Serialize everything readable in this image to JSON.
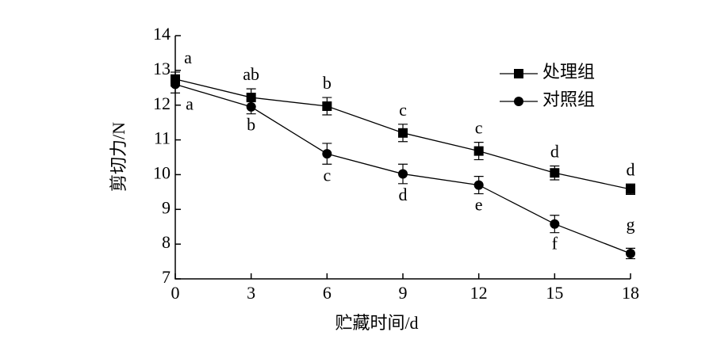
{
  "chart_data": {
    "type": "line",
    "x_label": "贮藏时间/d",
    "y_label": "剪切力/N",
    "x": [
      0,
      3,
      6,
      9,
      12,
      15,
      18
    ],
    "xlim": [
      0,
      18
    ],
    "xticks": [
      0,
      3,
      6,
      9,
      12,
      15,
      18
    ],
    "ylim": [
      7,
      14
    ],
    "yticks": [
      7,
      8,
      9,
      10,
      11,
      12,
      13,
      14
    ],
    "legend": "upper right",
    "series": [
      {
        "name": "处理组",
        "color": "#000000",
        "marker": "square",
        "values": [
          12.75,
          12.22,
          11.97,
          11.2,
          10.68,
          10.05,
          9.58
        ],
        "errors": [
          0.2,
          0.25,
          0.25,
          0.25,
          0.25,
          0.2,
          0.15
        ],
        "letters": [
          "a",
          "ab",
          "b",
          "c",
          "c",
          "d",
          "d"
        ]
      },
      {
        "name": "对照组",
        "color": "#000000",
        "marker": "circle",
        "values": [
          12.6,
          11.95,
          10.6,
          10.02,
          9.7,
          8.58,
          7.73
        ],
        "errors": [
          0.25,
          0.2,
          0.3,
          0.28,
          0.25,
          0.25,
          0.15
        ],
        "letters": [
          "a",
          "b",
          "c",
          "d",
          "e",
          "f",
          "g"
        ]
      }
    ]
  }
}
